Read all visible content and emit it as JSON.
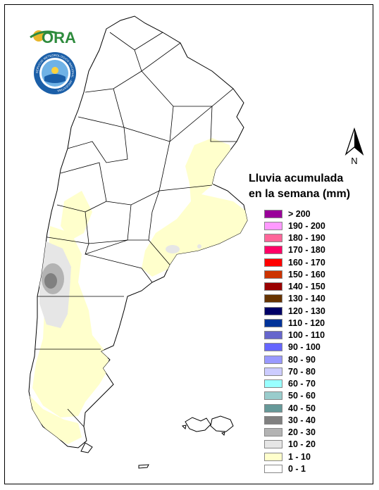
{
  "logo": {
    "text": "ORA",
    "icon": "sun-arc-logo",
    "color": "#2e8b3d"
  },
  "seal": {
    "icon": "smn-seal",
    "ring_text": "SERVICIO METEOROLOGICO NACIONAL · ARGENTINA",
    "color": "#1b5fa8"
  },
  "north_arrow": {
    "label": "N",
    "icon": "north-arrow-icon"
  },
  "legend": {
    "title_line1": "Lluvia acumulada",
    "title_line2": "en la semana (mm)",
    "items": [
      {
        "label": "> 200",
        "color": "#990099"
      },
      {
        "label": "190 - 200",
        "color": "#ff99ff"
      },
      {
        "label": "180 - 190",
        "color": "#ff6699"
      },
      {
        "label": "170 - 180",
        "color": "#ff0066"
      },
      {
        "label": "160 - 170",
        "color": "#ff0000"
      },
      {
        "label": "150 - 160",
        "color": "#cc3300"
      },
      {
        "label": "140 - 150",
        "color": "#990000"
      },
      {
        "label": "130 - 140",
        "color": "#663300"
      },
      {
        "label": "120 - 130",
        "color": "#000066"
      },
      {
        "label": "110 - 120",
        "color": "#003399"
      },
      {
        "label": "100 - 110",
        "color": "#6666cc"
      },
      {
        "label": "90 - 100",
        "color": "#6666ff"
      },
      {
        "label": "80 - 90",
        "color": "#9999ff"
      },
      {
        "label": "70 - 80",
        "color": "#ccccff"
      },
      {
        "label": "60 - 70",
        "color": "#99ffff"
      },
      {
        "label": "50 - 60",
        "color": "#99cccc"
      },
      {
        "label": "40 - 50",
        "color": "#669999"
      },
      {
        "label": "30 - 40",
        "color": "#808080"
      },
      {
        "label": "20 - 30",
        "color": "#b3b3b3"
      },
      {
        "label": "10 - 20",
        "color": "#e6e6e6"
      },
      {
        "label": "1 - 10",
        "color": "#ffffcc"
      },
      {
        "label": "0 - 1",
        "color": "#ffffff"
      }
    ]
  }
}
